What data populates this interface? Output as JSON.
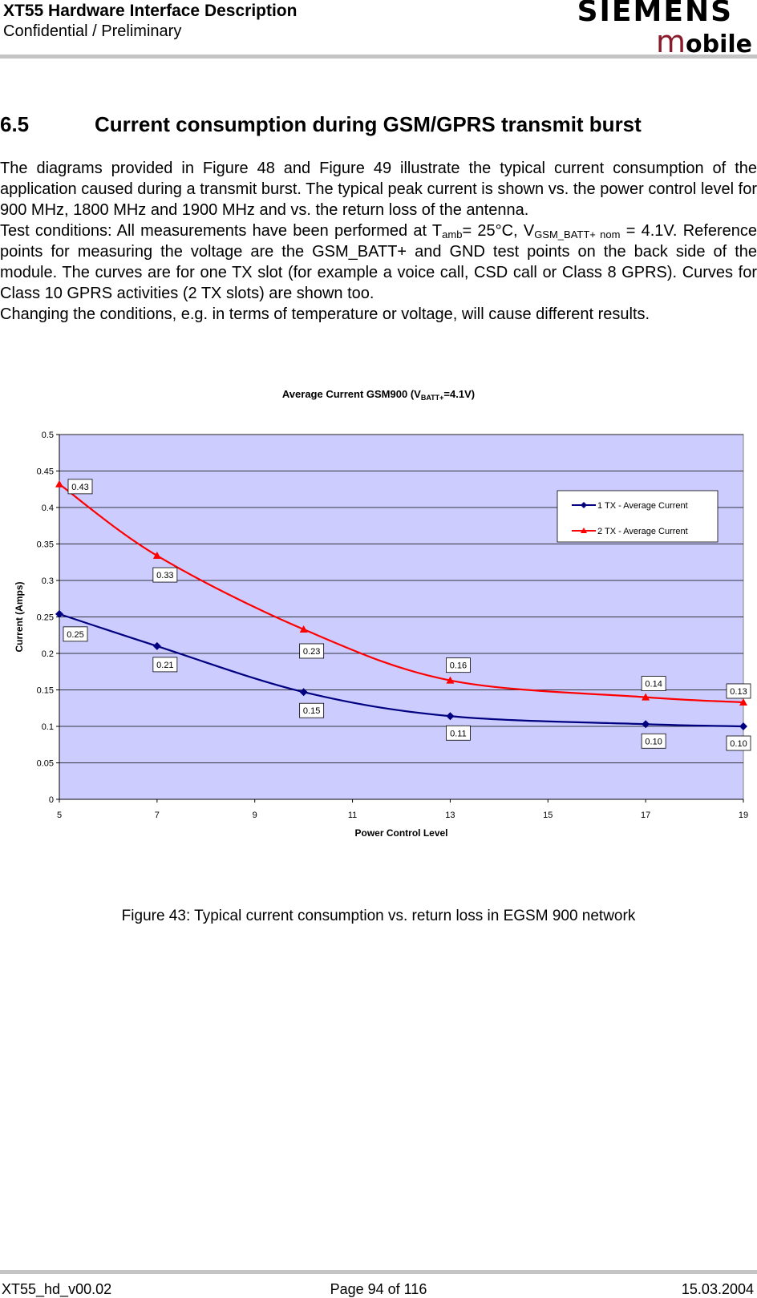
{
  "header": {
    "title": "XT55 Hardware Interface Description",
    "subtitle": "Confidential / Preliminary",
    "logo_brand": "SIEMENS",
    "logo_m": "m",
    "logo_rest": "obile"
  },
  "section": {
    "number": "6.5",
    "title": "Current consumption during GSM/GPRS transmit burst"
  },
  "paragraphs": {
    "p1": "The diagrams provided in Figure 48 and Figure 49 illustrate the typical current consumption of the application caused during a transmit burst. The typical peak current is shown vs. the power control level for 900 MHz, 1800 MHz and 1900 MHz and vs. the return loss of the antenna.",
    "p2_a": "Test conditions: All measurements have been performed at T",
    "p2_sub1": "amb",
    "p2_b": "= 25°C, V",
    "p2_sub2": "GSM_BATT+ nom",
    "p2_c": " = 4.1V. Reference points for measuring the voltage are the GSM_BATT+ and GND test points on the back side of the module. The curves are for one TX slot (for example a voice call, CSD call or Class 8 GPRS). Curves for Class 10 GPRS activities (2 TX slots) are shown too.",
    "p3": "Changing the conditions, e.g. in terms of temperature or voltage, will cause different results."
  },
  "chart_title": {
    "a": "Average Current GSM900 (V",
    "sub": "BATT+",
    "b": "=4.1V)"
  },
  "chart_data": {
    "type": "line",
    "title": "Average Current GSM900 (VBATT+=4.1V)",
    "xlabel": "Power Control Level",
    "ylabel": "Current (Amps)",
    "xlim": [
      5,
      19
    ],
    "ylim": [
      0,
      0.5
    ],
    "x_ticks": [
      "5",
      "7",
      "9",
      "11",
      "13",
      "15",
      "17",
      "19"
    ],
    "y_ticks": [
      "0",
      "0.05",
      "0.1",
      "0.15",
      "0.2",
      "0.25",
      "0.3",
      "0.35",
      "0.4",
      "0.45",
      "0.5"
    ],
    "grid": true,
    "plot_background": "#ccccff",
    "legend_position": "top-right",
    "series": [
      {
        "name": "1 TX - Average Current",
        "color": "#000080",
        "marker": "diamond",
        "x": [
          5,
          7,
          10,
          13,
          17,
          19
        ],
        "values": [
          0.254,
          0.21,
          0.147,
          0.114,
          0.103,
          0.1
        ],
        "labels": [
          "0.25",
          "0.21",
          "0.15",
          "0.11",
          "0.10",
          "0.10"
        ]
      },
      {
        "name": "2 TX - Average Current",
        "color": "#ff0000",
        "marker": "triangle",
        "x": [
          5,
          7,
          10,
          13,
          17,
          19
        ],
        "values": [
          0.432,
          0.334,
          0.233,
          0.163,
          0.14,
          0.133
        ],
        "labels": [
          "0.43",
          "0.33",
          "0.23",
          "0.16",
          "0.14",
          "0.13"
        ]
      }
    ]
  },
  "caption": "Figure 43: Typical current consumption vs. return loss in EGSM 900 network",
  "footer": {
    "left": "XT55_hd_v00.02",
    "center": "Page 94 of 116",
    "right": "15.03.2004"
  }
}
